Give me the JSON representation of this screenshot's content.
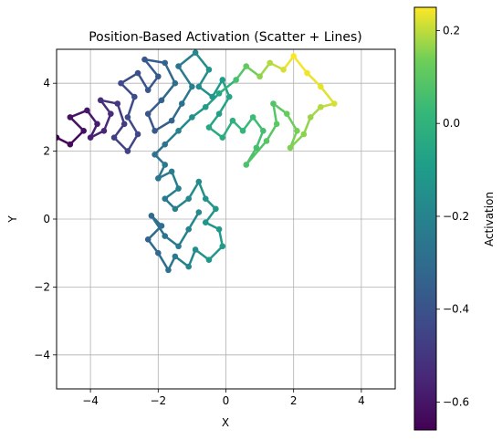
{
  "chart_data": {
    "type": "scatter",
    "title": "Position-Based Activation (Scatter + Lines)",
    "xlabel": "X",
    "ylabel": "Y",
    "xlim": [
      -5,
      5
    ],
    "ylim": [
      -5,
      5
    ],
    "xticks": [
      -4,
      -2,
      0,
      2,
      4
    ],
    "yticks": [
      -4,
      -2,
      0,
      2,
      4
    ],
    "xtick_labels": [
      "−4",
      "−2",
      "0",
      "2",
      "4"
    ],
    "ytick_labels": [
      "−4",
      "−2",
      "0",
      "2",
      "4"
    ],
    "grid": true,
    "connect_points": true,
    "colormap": "viridis",
    "colorbar": {
      "label": "Activation",
      "range": [
        -0.66,
        0.25
      ],
      "ticks": [
        -0.6,
        -0.4,
        -0.2,
        0.0,
        0.2
      ],
      "tick_labels": [
        "−0.6",
        "−0.4",
        "−0.2",
        "0.0",
        "0.2"
      ]
    },
    "points": [
      {
        "x": -5.0,
        "y": 2.4,
        "a": -0.65
      },
      {
        "x": -4.6,
        "y": 2.2,
        "a": -0.64
      },
      {
        "x": -4.2,
        "y": 2.6,
        "a": -0.62
      },
      {
        "x": -4.6,
        "y": 3.0,
        "a": -0.61
      },
      {
        "x": -4.1,
        "y": 3.2,
        "a": -0.6
      },
      {
        "x": -3.8,
        "y": 2.8,
        "a": -0.58
      },
      {
        "x": -4.0,
        "y": 2.4,
        "a": -0.57
      },
      {
        "x": -3.6,
        "y": 2.6,
        "a": -0.55
      },
      {
        "x": -3.4,
        "y": 3.1,
        "a": -0.53
      },
      {
        "x": -3.7,
        "y": 3.5,
        "a": -0.52
      },
      {
        "x": -3.2,
        "y": 3.4,
        "a": -0.5
      },
      {
        "x": -3.0,
        "y": 2.8,
        "a": -0.48
      },
      {
        "x": -3.3,
        "y": 2.4,
        "a": -0.47
      },
      {
        "x": -2.9,
        "y": 2.0,
        "a": -0.46
      },
      {
        "x": -2.6,
        "y": 2.5,
        "a": -0.44
      },
      {
        "x": -2.9,
        "y": 3.0,
        "a": -0.43
      },
      {
        "x": -2.7,
        "y": 3.6,
        "a": -0.42
      },
      {
        "x": -3.1,
        "y": 4.0,
        "a": -0.44
      },
      {
        "x": -2.6,
        "y": 4.3,
        "a": -0.41
      },
      {
        "x": -2.3,
        "y": 3.8,
        "a": -0.39
      },
      {
        "x": -2.0,
        "y": 4.2,
        "a": -0.37
      },
      {
        "x": -2.4,
        "y": 4.7,
        "a": -0.38
      },
      {
        "x": -1.8,
        "y": 4.6,
        "a": -0.33
      },
      {
        "x": -1.5,
        "y": 4.0,
        "a": -0.3
      },
      {
        "x": -1.9,
        "y": 3.5,
        "a": -0.34
      },
      {
        "x": -2.3,
        "y": 3.1,
        "a": -0.39
      },
      {
        "x": -2.1,
        "y": 2.6,
        "a": -0.38
      },
      {
        "x": -1.6,
        "y": 2.9,
        "a": -0.33
      },
      {
        "x": -1.3,
        "y": 3.4,
        "a": -0.28
      },
      {
        "x": -1.0,
        "y": 3.9,
        "a": -0.22
      },
      {
        "x": -1.4,
        "y": 4.5,
        "a": -0.26
      },
      {
        "x": -0.9,
        "y": 4.9,
        "a": -0.18
      },
      {
        "x": -0.5,
        "y": 4.4,
        "a": -0.14
      },
      {
        "x": -0.8,
        "y": 3.9,
        "a": -0.17
      },
      {
        "x": -0.4,
        "y": 3.6,
        "a": -0.12
      },
      {
        "x": -0.1,
        "y": 4.1,
        "a": -0.09
      },
      {
        "x": 0.1,
        "y": 3.6,
        "a": -0.06
      },
      {
        "x": -0.2,
        "y": 3.1,
        "a": -0.08
      },
      {
        "x": -0.5,
        "y": 2.7,
        "a": -0.05
      },
      {
        "x": -0.1,
        "y": 2.4,
        "a": -0.03
      },
      {
        "x": 0.2,
        "y": 2.9,
        "a": -0.01
      },
      {
        "x": 0.5,
        "y": 2.6,
        "a": 0.02
      },
      {
        "x": 0.8,
        "y": 3.0,
        "a": 0.04
      },
      {
        "x": 1.1,
        "y": 2.6,
        "a": 0.05
      },
      {
        "x": 0.9,
        "y": 2.1,
        "a": 0.06
      },
      {
        "x": 0.6,
        "y": 1.6,
        "a": 0.07
      },
      {
        "x": 1.2,
        "y": 2.3,
        "a": 0.09
      },
      {
        "x": 1.5,
        "y": 2.8,
        "a": 0.1
      },
      {
        "x": 1.4,
        "y": 3.4,
        "a": 0.08
      },
      {
        "x": 1.8,
        "y": 3.1,
        "a": 0.12
      },
      {
        "x": 2.1,
        "y": 2.6,
        "a": 0.14
      },
      {
        "x": 1.9,
        "y": 2.1,
        "a": 0.15
      },
      {
        "x": 2.3,
        "y": 2.5,
        "a": 0.16
      },
      {
        "x": 2.5,
        "y": 3.0,
        "a": 0.17
      },
      {
        "x": 2.8,
        "y": 3.3,
        "a": 0.19
      },
      {
        "x": 3.2,
        "y": 3.4,
        "a": 0.22
      },
      {
        "x": 2.8,
        "y": 3.9,
        "a": 0.23
      },
      {
        "x": 2.4,
        "y": 4.3,
        "a": 0.24
      },
      {
        "x": 2.0,
        "y": 4.8,
        "a": 0.25
      },
      {
        "x": 1.7,
        "y": 4.4,
        "a": 0.22
      },
      {
        "x": 1.3,
        "y": 4.6,
        "a": 0.19
      },
      {
        "x": 1.0,
        "y": 4.2,
        "a": 0.16
      },
      {
        "x": 0.6,
        "y": 4.5,
        "a": 0.11
      },
      {
        "x": 0.3,
        "y": 4.1,
        "a": 0.06
      },
      {
        "x": -0.2,
        "y": 3.7,
        "a": -0.06
      },
      {
        "x": -0.6,
        "y": 3.3,
        "a": -0.1
      },
      {
        "x": -1.0,
        "y": 3.0,
        "a": -0.15
      },
      {
        "x": -1.4,
        "y": 2.6,
        "a": -0.2
      },
      {
        "x": -1.8,
        "y": 2.2,
        "a": -0.26
      },
      {
        "x": -2.1,
        "y": 1.9,
        "a": -0.28
      },
      {
        "x": -1.8,
        "y": 1.6,
        "a": -0.24
      },
      {
        "x": -2.0,
        "y": 1.2,
        "a": -0.26
      },
      {
        "x": -1.6,
        "y": 1.4,
        "a": -0.23
      },
      {
        "x": -1.4,
        "y": 0.9,
        "a": -0.21
      },
      {
        "x": -1.8,
        "y": 0.6,
        "a": -0.25
      },
      {
        "x": -1.5,
        "y": 0.3,
        "a": -0.22
      },
      {
        "x": -1.1,
        "y": 0.6,
        "a": -0.18
      },
      {
        "x": -0.8,
        "y": 1.1,
        "a": -0.16
      },
      {
        "x": -0.6,
        "y": 0.6,
        "a": -0.14
      },
      {
        "x": -0.3,
        "y": 0.3,
        "a": -0.12
      },
      {
        "x": -0.6,
        "y": -0.1,
        "a": -0.13
      },
      {
        "x": -0.2,
        "y": -0.3,
        "a": -0.11
      },
      {
        "x": -0.1,
        "y": -0.8,
        "a": -0.1
      },
      {
        "x": -0.5,
        "y": -1.2,
        "a": -0.12
      },
      {
        "x": -0.9,
        "y": -0.9,
        "a": -0.16
      },
      {
        "x": -1.1,
        "y": -1.4,
        "a": -0.19
      },
      {
        "x": -1.5,
        "y": -1.1,
        "a": -0.24
      },
      {
        "x": -1.7,
        "y": -1.5,
        "a": -0.28
      },
      {
        "x": -2.0,
        "y": -1.0,
        "a": -0.31
      },
      {
        "x": -2.3,
        "y": -0.6,
        "a": -0.33
      },
      {
        "x": -1.9,
        "y": -0.2,
        "a": -0.29
      },
      {
        "x": -2.2,
        "y": 0.1,
        "a": -0.31
      },
      {
        "x": -1.8,
        "y": -0.5,
        "a": -0.27
      },
      {
        "x": -1.4,
        "y": -0.8,
        "a": -0.23
      },
      {
        "x": -1.1,
        "y": -0.3,
        "a": -0.2
      },
      {
        "x": -0.8,
        "y": 0.2,
        "a": -0.17
      }
    ]
  }
}
